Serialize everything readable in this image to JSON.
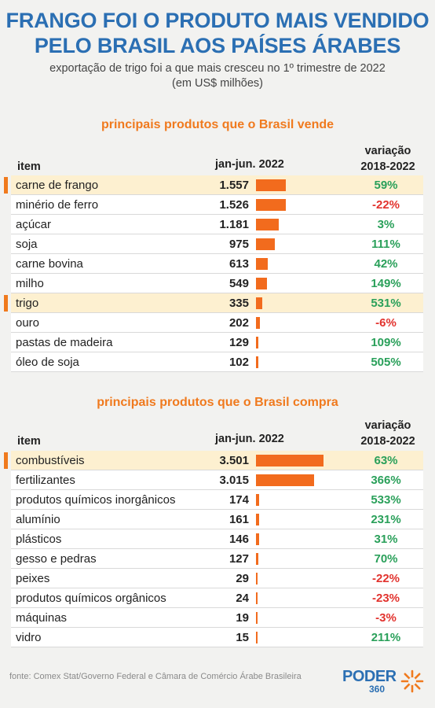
{
  "header": {
    "title_line1": "FRANGO FOI O PRODUTO MAIS VENDIDO",
    "title_line2": "PELO BRASIL AOS PAÍSES ÁRABES",
    "subtitle_line1": "exportação de trigo foi a que mais cresceu no 1º trimestre de 2022",
    "subtitle_line2": "(em US$ milhões)"
  },
  "chart_data": [
    {
      "type": "table",
      "title": "principais produtos que o Brasil vende",
      "columns": [
        "item",
        "jan-jun. 2022",
        "variação 2018-2022"
      ],
      "col_item": "item",
      "col_value": "jan-jun. 2022",
      "col_var_line1": "variação",
      "col_var_line2": "2018-2022",
      "rows": [
        {
          "item": "carne de frango",
          "value": 1557,
          "label": "1.557",
          "variation": "59%",
          "highlight": true
        },
        {
          "item": "minério de ferro",
          "value": 1526,
          "label": "1.526",
          "variation": "-22%",
          "highlight": false
        },
        {
          "item": "açúcar",
          "value": 1181,
          "label": "1.181",
          "variation": "3%",
          "highlight": false
        },
        {
          "item": "soja",
          "value": 975,
          "label": "975",
          "variation": "111%",
          "highlight": false
        },
        {
          "item": "carne bovina",
          "value": 613,
          "label": "613",
          "variation": "42%",
          "highlight": false
        },
        {
          "item": "milho",
          "value": 549,
          "label": "549",
          "variation": "149%",
          "highlight": false
        },
        {
          "item": "trigo",
          "value": 335,
          "label": "335",
          "variation": "531%",
          "highlight": true
        },
        {
          "item": "ouro",
          "value": 202,
          "label": "202",
          "variation": "-6%",
          "highlight": false
        },
        {
          "item": "pastas de madeira",
          "value": 129,
          "label": "129",
          "variation": "109%",
          "highlight": false
        },
        {
          "item": "óleo de soja",
          "value": 102,
          "label": "102",
          "variation": "505%",
          "highlight": false
        }
      ]
    },
    {
      "type": "table",
      "title": "principais produtos que o Brasil compra",
      "columns": [
        "item",
        "jan-jun. 2022",
        "variação 2018-2022"
      ],
      "col_item": "item",
      "col_value": "jan-jun. 2022",
      "col_var_line1": "variação",
      "col_var_line2": "2018-2022",
      "rows": [
        {
          "item": "combustíveis",
          "value": 3501,
          "label": "3.501",
          "variation": "63%",
          "highlight": true
        },
        {
          "item": "fertilizantes",
          "value": 3015,
          "label": "3.015",
          "variation": "366%",
          "highlight": false
        },
        {
          "item": "produtos químicos inorgânicos",
          "value": 174,
          "label": "174",
          "variation": "533%",
          "highlight": false
        },
        {
          "item": "alumínio",
          "value": 161,
          "label": "161",
          "variation": "231%",
          "highlight": false
        },
        {
          "item": "plásticos",
          "value": 146,
          "label": "146",
          "variation": "31%",
          "highlight": false
        },
        {
          "item": "gesso e pedras",
          "value": 127,
          "label": "127",
          "variation": "70%",
          "highlight": false
        },
        {
          "item": "peixes",
          "value": 29,
          "label": "29",
          "variation": "-22%",
          "highlight": false
        },
        {
          "item": "produtos químicos orgânicos",
          "value": 24,
          "label": "24",
          "variation": "-23%",
          "highlight": false
        },
        {
          "item": "máquinas",
          "value": 19,
          "label": "19",
          "variation": "-3%",
          "highlight": false
        },
        {
          "item": "vidro",
          "value": 15,
          "label": "15",
          "variation": "211%",
          "highlight": false
        }
      ]
    }
  ],
  "footer": {
    "source": "fonte: Comex Stat/Governo Federal e Câmara de Comércio Árabe Brasileira",
    "logo_word": "PODER",
    "logo_number": "360"
  },
  "colors": {
    "title": "#2b6fb3",
    "accent": "#f07a1e",
    "bar": "#f26b1d",
    "positive": "#2aa05a",
    "negative": "#e2332e",
    "highlight_row": "#fdf0d0"
  }
}
